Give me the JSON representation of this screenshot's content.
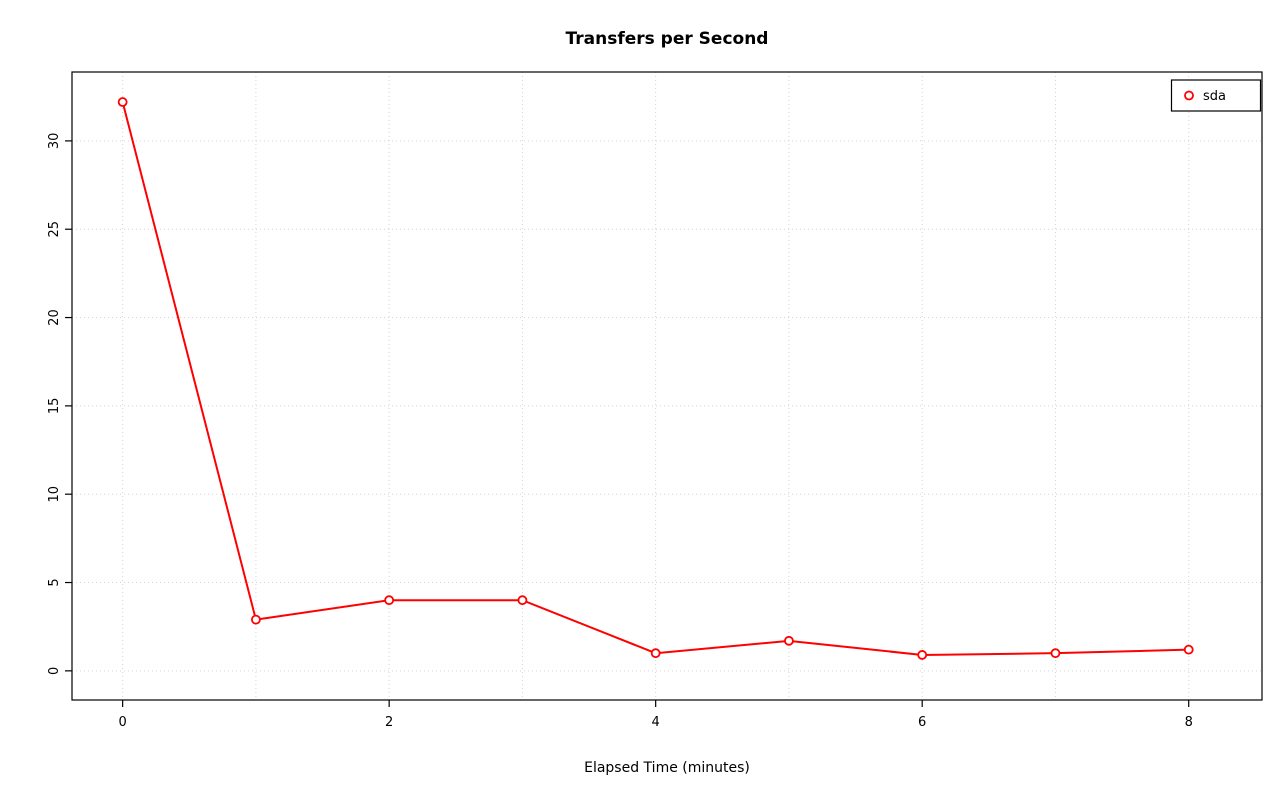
{
  "chart_data": {
    "type": "line",
    "title": "Transfers per Second",
    "xlabel": "Elapsed Time (minutes)",
    "ylabel": "",
    "series": [
      {
        "name": "sda",
        "color": "#ff0000",
        "marker": "open-circle",
        "x": [
          0,
          1,
          2,
          3,
          4,
          5,
          6,
          7,
          8
        ],
        "values": [
          32.2,
          2.9,
          4.0,
          4.0,
          1.0,
          1.7,
          0.9,
          1.0,
          1.2
        ]
      }
    ],
    "x_ticks": [
      0,
      2,
      4,
      6,
      8
    ],
    "y_ticks": [
      0,
      5,
      10,
      15,
      20,
      25,
      30
    ],
    "xlim": [
      -0.38,
      8.55
    ],
    "ylim": [
      -1.65,
      33.9
    ],
    "grid": {
      "on": true,
      "style": "dotted",
      "color": "#d3d3d3",
      "x_lines": [
        0,
        1,
        2,
        3,
        4,
        5,
        6,
        7,
        8
      ],
      "y_lines": [
        0,
        5,
        10,
        15,
        20,
        25,
        30
      ]
    },
    "legend": {
      "position": "top-right",
      "entries": [
        {
          "label": "sda",
          "color": "#ff0000"
        }
      ]
    }
  }
}
